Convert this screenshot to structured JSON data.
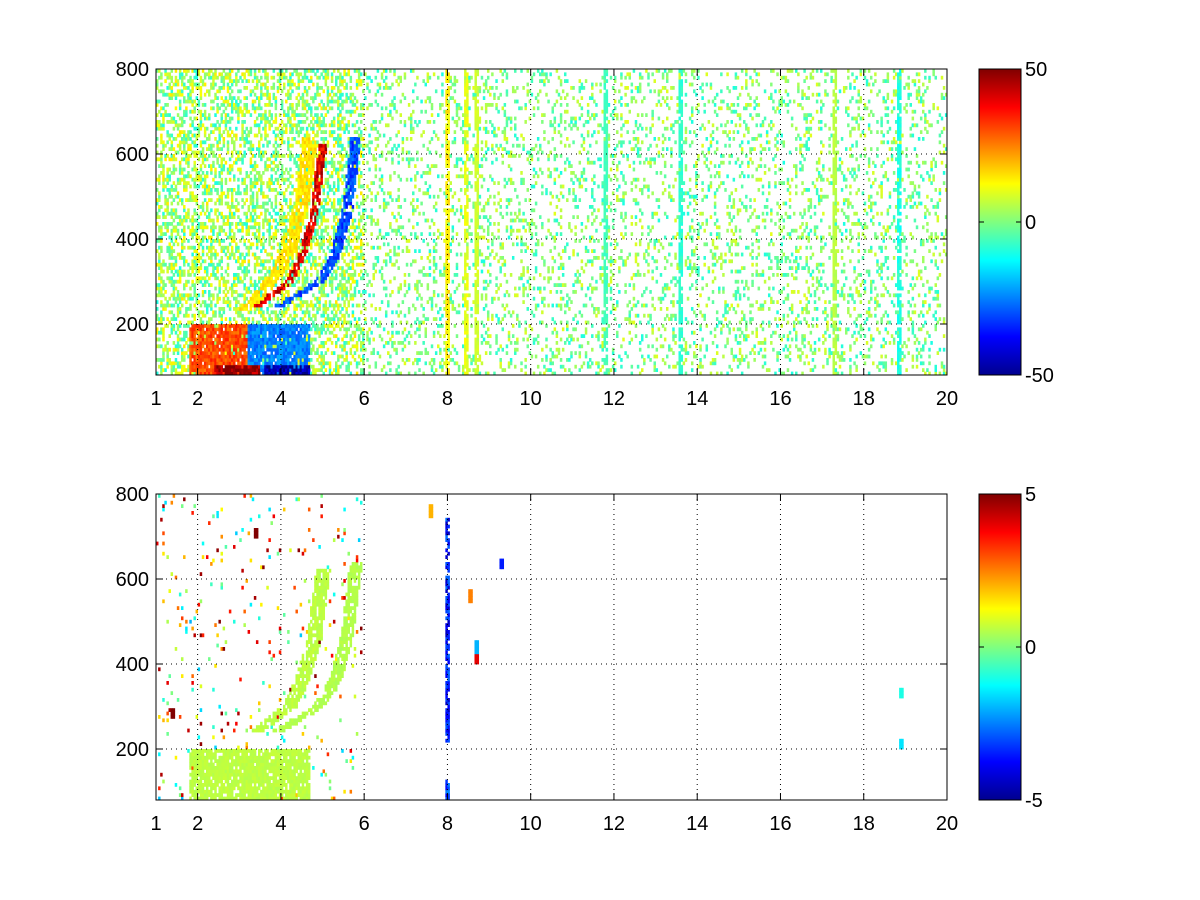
{
  "chart_data": [
    {
      "type": "heatmap",
      "title": "",
      "xlabel": "",
      "ylabel": "",
      "xlim": [
        1,
        20
      ],
      "ylim": [
        80,
        800
      ],
      "grid": true,
      "grid_style": "dotted",
      "colormap": "jet",
      "colorbar": {
        "range": [
          -50,
          50
        ],
        "tick_values": [
          50,
          0,
          -50
        ],
        "tick_labels": [
          "50",
          "0",
          "-50"
        ],
        "placement": "right"
      },
      "x_tick_values": [
        1,
        2,
        4,
        6,
        8,
        10,
        12,
        14,
        16,
        18,
        20
      ],
      "x_tick_labels": [
        "1",
        "2",
        "4",
        "6",
        "8",
        "10",
        "12",
        "14",
        "16",
        "18",
        "20"
      ],
      "y_tick_values": [
        200,
        400,
        600,
        800
      ],
      "y_tick_labels": [
        "200",
        "400",
        "600",
        "800"
      ],
      "features": [
        {
          "kind": "block",
          "x": [
            1.8,
            3.2
          ],
          "y": [
            80,
            200
          ],
          "value": 30
        },
        {
          "kind": "block",
          "x": [
            3.2,
            4.7
          ],
          "y": [
            80,
            200
          ],
          "value": -25
        },
        {
          "kind": "block",
          "x": [
            2.4,
            3.5
          ],
          "y": [
            80,
            100
          ],
          "value": 48
        },
        {
          "kind": "block",
          "x": [
            3.6,
            4.7
          ],
          "y": [
            80,
            100
          ],
          "value": -48
        },
        {
          "kind": "curve",
          "x": [
            3.4,
            3.8,
            4.2,
            4.5,
            4.8,
            5.0
          ],
          "y": [
            240,
            270,
            300,
            360,
            460,
            620
          ],
          "value": 40,
          "width": 0.2
        },
        {
          "kind": "curve",
          "x": [
            3.9,
            4.4,
            4.9,
            5.3,
            5.6,
            5.8
          ],
          "y": [
            240,
            270,
            300,
            360,
            470,
            640
          ],
          "value": -30,
          "width": 0.25
        },
        {
          "kind": "curve",
          "x": [
            3.1,
            3.5,
            3.9,
            4.2,
            4.5,
            4.7
          ],
          "y": [
            230,
            270,
            320,
            380,
            480,
            640
          ],
          "value": 15,
          "width": 0.35
        },
        {
          "kind": "line",
          "x": 8.0,
          "y": [
            80,
            800
          ],
          "value": 14
        },
        {
          "kind": "line",
          "x": 8.45,
          "y": [
            80,
            800
          ],
          "value": 10
        },
        {
          "kind": "line",
          "x": 8.7,
          "y": [
            80,
            800
          ],
          "value": 8
        },
        {
          "kind": "line",
          "x": 11.8,
          "y": [
            80,
            800
          ],
          "value": -6
        },
        {
          "kind": "line",
          "x": 13.6,
          "y": [
            80,
            800
          ],
          "value": -8
        },
        {
          "kind": "line",
          "x": 17.3,
          "y": [
            80,
            800
          ],
          "value": 6
        },
        {
          "kind": "line",
          "x": 18.85,
          "y": [
            80,
            800
          ],
          "value": -10
        }
      ],
      "noise": [
        {
          "x": [
            1,
            6
          ],
          "density": 0.45,
          "range": [
            -10,
            15
          ]
        },
        {
          "x": [
            6,
            20
          ],
          "density": 0.18,
          "range": [
            -10,
            10
          ]
        }
      ]
    },
    {
      "type": "heatmap",
      "title": "",
      "xlabel": "",
      "ylabel": "",
      "xlim": [
        1,
        20
      ],
      "ylim": [
        80,
        800
      ],
      "grid": true,
      "grid_style": "dotted",
      "colormap": "jet",
      "colorbar": {
        "range": [
          -5,
          5
        ],
        "tick_values": [
          5,
          0,
          -5
        ],
        "tick_labels": [
          "5",
          "0",
          "-5"
        ],
        "placement": "right"
      },
      "x_tick_values": [
        1,
        2,
        4,
        6,
        8,
        10,
        12,
        14,
        16,
        18,
        20
      ],
      "x_tick_labels": [
        "1",
        "2",
        "4",
        "6",
        "8",
        "10",
        "12",
        "14",
        "16",
        "18",
        "20"
      ],
      "y_tick_values": [
        200,
        400,
        600,
        800
      ],
      "y_tick_labels": [
        "200",
        "400",
        "600",
        "800"
      ],
      "features": [
        {
          "kind": "block",
          "x": [
            1.8,
            4.7
          ],
          "y": [
            80,
            200
          ],
          "value": 0.6
        },
        {
          "kind": "curve",
          "x": [
            3.4,
            3.8,
            4.2,
            4.5,
            4.8,
            5.0
          ],
          "y": [
            240,
            270,
            300,
            360,
            460,
            620
          ],
          "value": 0.6,
          "width": 0.35
        },
        {
          "kind": "curve",
          "x": [
            3.9,
            4.4,
            4.9,
            5.3,
            5.6,
            5.8
          ],
          "y": [
            240,
            270,
            300,
            360,
            470,
            640
          ],
          "value": 0.5,
          "width": 0.3
        },
        {
          "kind": "line",
          "x": 8.0,
          "y": [
            220,
            740
          ],
          "value": -3.5
        },
        {
          "kind": "line",
          "x": 8.0,
          "y": [
            80,
            130
          ],
          "value": -3.0
        },
        {
          "kind": "point",
          "x": 7.6,
          "y": 760,
          "value": 2.0
        },
        {
          "kind": "point",
          "x": 8.55,
          "y": 560,
          "value": 2.5
        },
        {
          "kind": "point",
          "x": 8.7,
          "y": 410,
          "value": 4.0
        },
        {
          "kind": "point",
          "x": 8.7,
          "y": 440,
          "value": -2.0
        },
        {
          "kind": "point",
          "x": 9.3,
          "y": 635,
          "value": -3.5
        },
        {
          "kind": "point",
          "x": 3.4,
          "y": 705,
          "value": 5.0
        },
        {
          "kind": "point",
          "x": 1.4,
          "y": 285,
          "value": 5.0
        },
        {
          "kind": "point",
          "x": 18.9,
          "y": 330,
          "value": -1.0
        },
        {
          "kind": "point",
          "x": 18.9,
          "y": 210,
          "value": -1.5
        }
      ],
      "noise": [
        {
          "x": [
            1,
            6
          ],
          "density": 0.04,
          "range": [
            -2,
            5
          ]
        }
      ]
    }
  ]
}
